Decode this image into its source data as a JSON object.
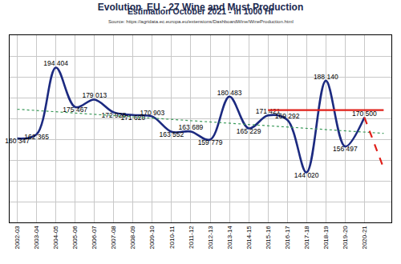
{
  "chart_data": {
    "type": "line",
    "title": "Evolution  EU - 27 Wine and Must Production",
    "subtitle": "Estimation October 2021 - in 1000 Hl",
    "source": "Source: https://agridata.ec.europa.eu/extensions/DashboardWine/WineProduction.html",
    "categories": [
      "2002-03",
      "2003-04",
      "2004-05",
      "2005-06",
      "2006-07",
      "2007-08",
      "2008-09",
      "2009-10",
      "2010-11",
      "2011-12",
      "2012-13",
      "2013-14",
      "2014-15",
      "2015-16",
      "2016-17",
      "2017-18",
      "2018-19",
      "2019-20",
      "2020-21",
      null
    ],
    "series": [
      {
        "color": "#1c2a80",
        "line_style": "solid",
        "values": [
          160347,
          162365,
          194404,
          175467,
          179013,
          172928,
          171620,
          170903,
          163552,
          163689,
          159779,
          180483,
          165229,
          171421,
          169292,
          144020,
          188140,
          156497,
          170500,
          null
        ],
        "value_labels": [
          "160 347",
          "162 365",
          "194 404",
          "175 467",
          "179 013",
          "172 928",
          "171 620",
          "170 903",
          "163 552",
          "163 689",
          "159 779",
          "180 483",
          "165 229",
          "171 421",
          "169 292",
          "144 020",
          "188 140",
          "156 497",
          "170 500",
          null
        ]
      },
      {
        "color": "#3a9a5a",
        "line_style": "dotted",
        "values": [
          174400,
          null,
          null,
          null,
          null,
          null,
          null,
          null,
          null,
          null,
          null,
          null,
          null,
          null,
          null,
          null,
          null,
          null,
          null,
          162800
        ]
      },
      {
        "color": "#e0201a",
        "line_style": "solid",
        "values": [
          null,
          null,
          null,
          null,
          null,
          null,
          null,
          null,
          null,
          null,
          null,
          null,
          null,
          174000,
          null,
          null,
          null,
          null,
          null,
          174000
        ]
      },
      {
        "color": "#e0201a",
        "line_style": "dashed",
        "values": [
          null,
          null,
          null,
          null,
          null,
          null,
          null,
          null,
          null,
          null,
          null,
          null,
          null,
          null,
          null,
          null,
          null,
          null,
          170500,
          146000
        ]
      }
    ],
    "ylim": [
      120000,
      210000
    ],
    "yticks": [
      120000,
      130000,
      140000,
      150000,
      160000,
      170000,
      180000,
      190000,
      200000,
      210000
    ],
    "grid": true,
    "data_labels": true,
    "tick_labels": "x"
  }
}
